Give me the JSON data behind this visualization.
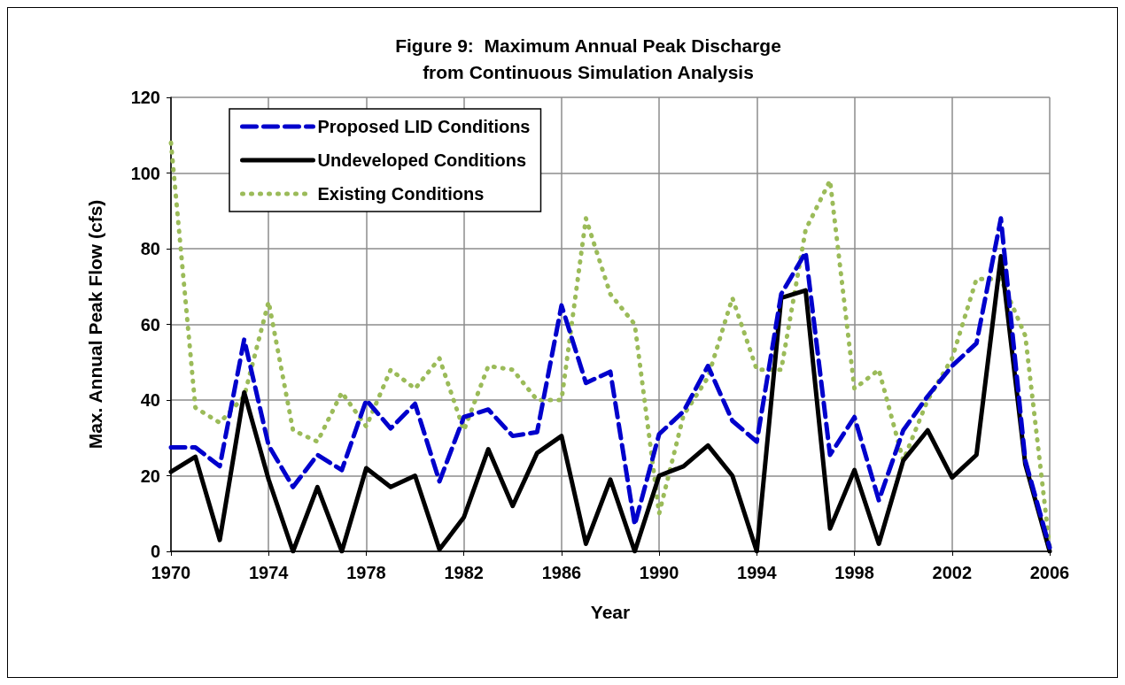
{
  "chart_data": {
    "type": "line",
    "title": "Figure 9:  Maximum Annual Peak Discharge\nfrom Continuous Simulation Analysis",
    "xlabel": "Year",
    "ylabel": "Max. Annual Peak Flow (cfs)",
    "x": [
      1970,
      1971,
      1972,
      1973,
      1974,
      1975,
      1976,
      1977,
      1978,
      1979,
      1980,
      1981,
      1982,
      1983,
      1984,
      1985,
      1986,
      1987,
      1988,
      1989,
      1990,
      1991,
      1992,
      1993,
      1994,
      1995,
      1996,
      1997,
      1998,
      1999,
      2000,
      2001,
      2002,
      2003,
      2004,
      2005,
      2006
    ],
    "series": [
      {
        "name": "Proposed LID Conditions",
        "color": "#0000cc",
        "line_style": "dashed",
        "values": [
          27.5,
          27.5,
          22.5,
          56,
          28,
          17,
          25.5,
          21.5,
          40,
          32.5,
          39,
          18.5,
          35.5,
          37.5,
          30.5,
          31.5,
          65,
          44.5,
          47.5,
          7,
          31,
          37,
          49,
          34.5,
          29,
          68,
          79,
          25.5,
          35.5,
          13.5,
          32,
          41,
          49,
          55,
          88,
          24,
          1
        ]
      },
      {
        "name": "Undeveloped Conditions",
        "color": "#000000",
        "line_style": "solid",
        "values": [
          21,
          25,
          3,
          42,
          19,
          0,
          17,
          0,
          22,
          17,
          20,
          0.5,
          9,
          27,
          12,
          26,
          30.5,
          2,
          19,
          0,
          20,
          22.5,
          28,
          20,
          0,
          67,
          69,
          6,
          21.5,
          2,
          24,
          32,
          19.5,
          25.5,
          78,
          23,
          0
        ]
      },
      {
        "name": "Existing Conditions",
        "color": "#9bbb59",
        "line_style": "dotted",
        "values": [
          108,
          38,
          34,
          41,
          66,
          32,
          29,
          42,
          33,
          48,
          43,
          51,
          32,
          49,
          48,
          40,
          40,
          88,
          68,
          60,
          10,
          36,
          46,
          67,
          48,
          48,
          85,
          98,
          43,
          48,
          24,
          40,
          51,
          72,
          72,
          57,
          1
        ]
      }
    ],
    "xlim": [
      1970,
      2006
    ],
    "xticks": [
      1970,
      1974,
      1978,
      1982,
      1986,
      1990,
      1994,
      1998,
      2002,
      2006
    ],
    "ylim": [
      0,
      120
    ],
    "yticks": [
      0,
      20,
      40,
      60,
      80,
      100,
      120
    ],
    "grid": true,
    "legend": "top left",
    "marker": "none"
  }
}
